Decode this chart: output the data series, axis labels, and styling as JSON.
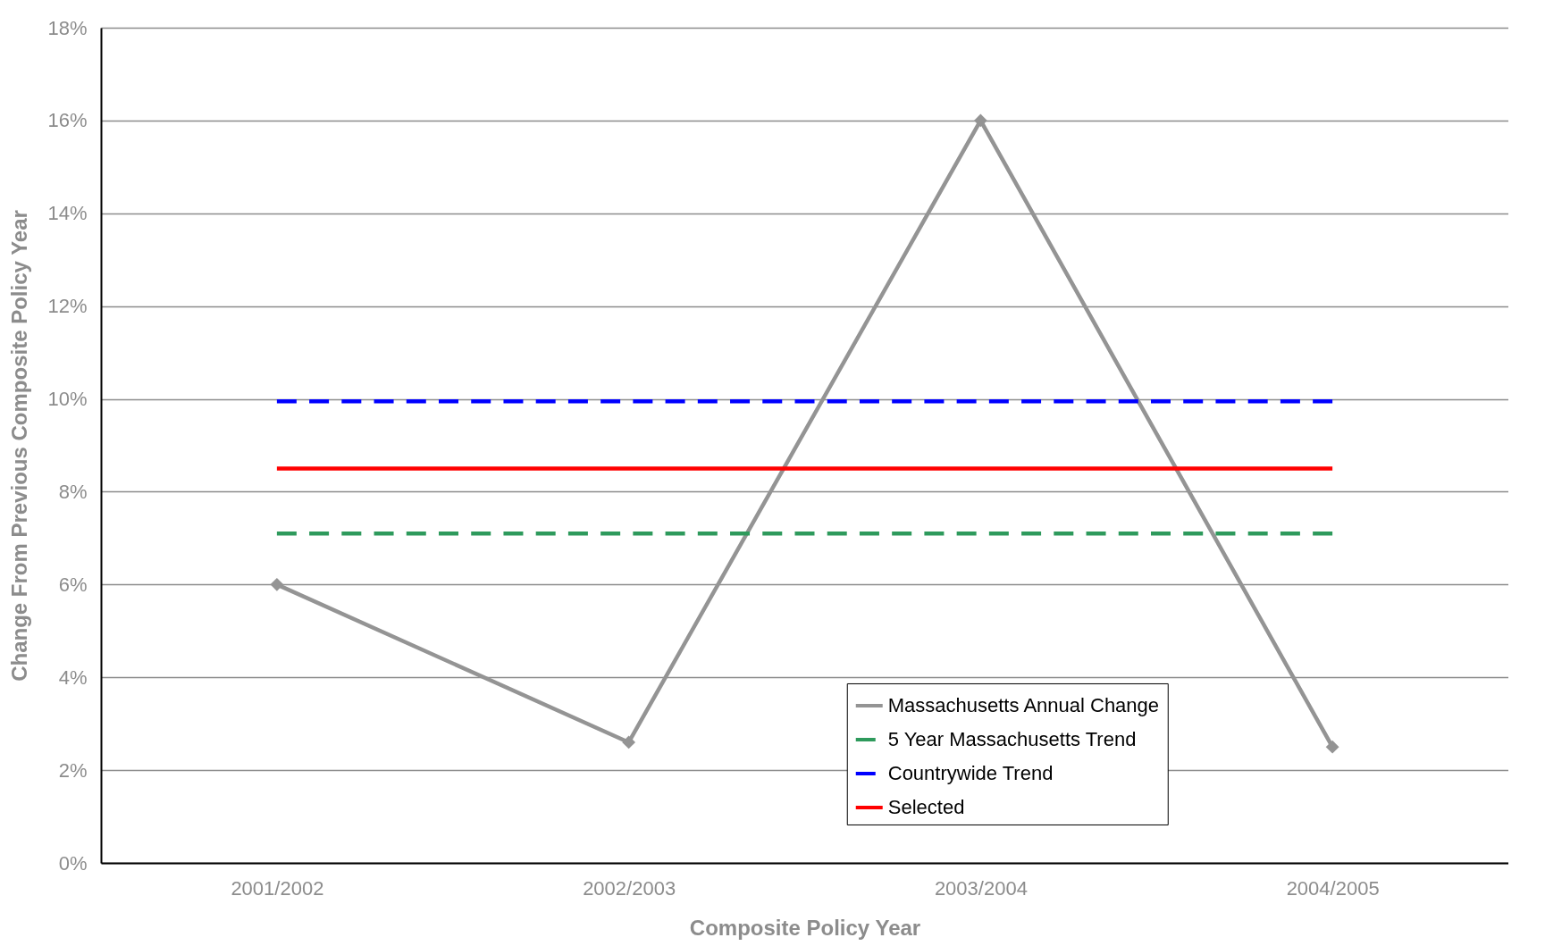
{
  "chart_data": {
    "type": "line",
    "xlabel": "Composite Policy Year",
    "ylabel": "Change From Previous Composite Policy Year",
    "categories": [
      "2001/2002",
      "2002/2003",
      "2003/2004",
      "2004/2005"
    ],
    "series": [
      {
        "name": "Massachusetts Annual Change",
        "color": "#949494",
        "values": [
          6.0,
          2.6,
          16.0,
          2.5
        ],
        "marker": "diamond",
        "line_style": "solid"
      },
      {
        "name": "5 Year Massachusetts Trend",
        "color": "#2e9a5c",
        "values": [
          7.1,
          7.1,
          7.1,
          7.1
        ],
        "marker": "none",
        "line_style": "dashed"
      },
      {
        "name": "Countrywide Trend",
        "color": "#0000ff",
        "values": [
          9.95,
          9.95,
          9.95,
          9.95
        ],
        "marker": "none",
        "line_style": "dashed"
      },
      {
        "name": "Selected",
        "color": "#ff0000",
        "values": [
          8.5,
          8.5,
          8.5,
          8.5
        ],
        "marker": "none",
        "line_style": "solid"
      }
    ],
    "ylim": [
      0,
      18
    ],
    "yticks": [
      {
        "value": 0,
        "label": "0%"
      },
      {
        "value": 2,
        "label": "2%"
      },
      {
        "value": 4,
        "label": "4%"
      },
      {
        "value": 6,
        "label": "6%"
      },
      {
        "value": 8,
        "label": "8%"
      },
      {
        "value": 10,
        "label": "10%"
      },
      {
        "value": 12,
        "label": "12%"
      },
      {
        "value": 14,
        "label": "14%"
      },
      {
        "value": 16,
        "label": "16%"
      },
      {
        "value": 18,
        "label": "18%"
      }
    ],
    "grid": "y",
    "legend": "bottom right"
  }
}
